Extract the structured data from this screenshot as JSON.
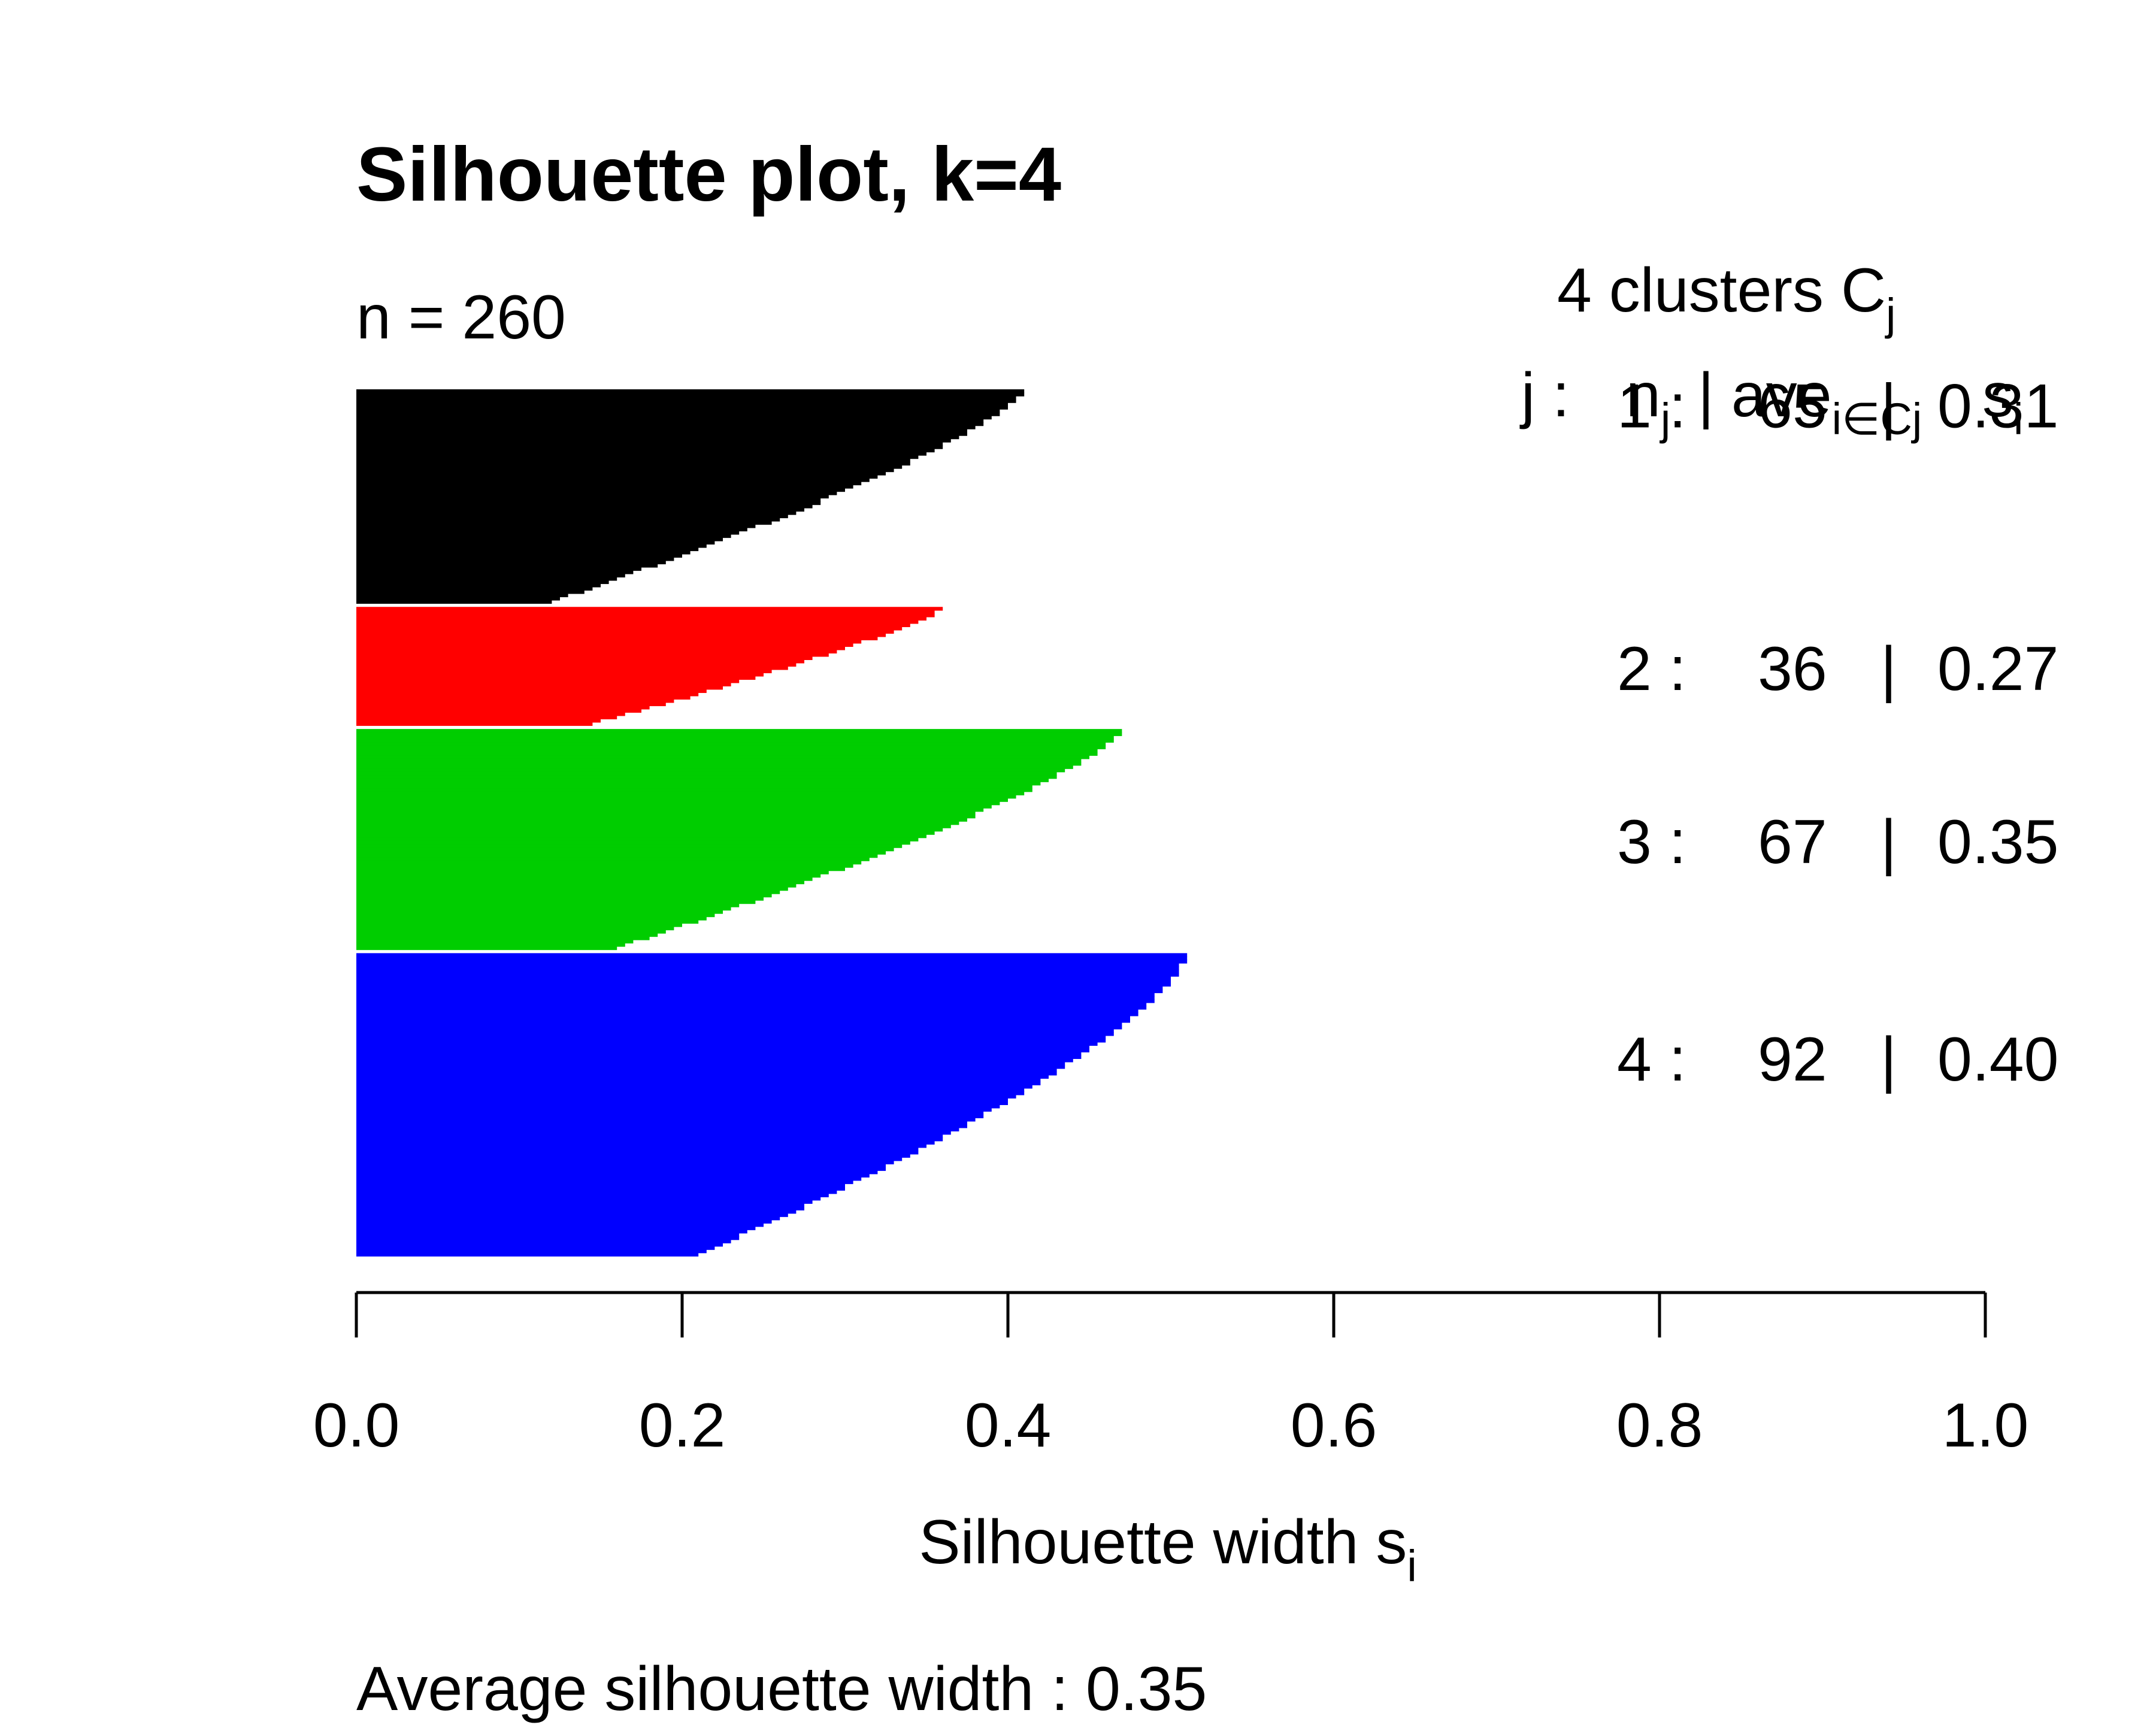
{
  "chart_data": {
    "type": "bar",
    "orientation": "horizontal",
    "title": "Silhouette plot, k=4",
    "subtitle": "n = 260",
    "xlabel": {
      "text": "Silhouette width s",
      "sub": "i"
    },
    "xlim": [
      0,
      1
    ],
    "xticks": [
      {
        "value": 0.0,
        "label": "0.0"
      },
      {
        "value": 0.2,
        "label": "0.2"
      },
      {
        "value": 0.4,
        "label": "0.4"
      },
      {
        "value": 0.6,
        "label": "0.6"
      },
      {
        "value": 0.8,
        "label": "0.8"
      },
      {
        "value": 1.0,
        "label": "1.0"
      }
    ],
    "grid": false,
    "legend_header": {
      "line1": {
        "text": "4  clusters  C",
        "sub": "j"
      },
      "line2": {
        "j": "j :",
        "n": "n",
        "n_sub": "j",
        "ave": "| ave",
        "ave_sub": "i∈Cj",
        "s": "s",
        "s_sub": "i"
      }
    },
    "clusters": [
      {
        "id": "1",
        "color": "#000000",
        "n": 65,
        "n_label": "65",
        "avg_label": "0.31",
        "max": 0.41,
        "min": 0.12,
        "shape": 1.3
      },
      {
        "id": "2",
        "color": "#ff0000",
        "n": 36,
        "n_label": "36",
        "avg_label": "0.27",
        "max": 0.36,
        "min": 0.145,
        "shape": 1.2
      },
      {
        "id": "3",
        "color": "#00cd00",
        "n": 67,
        "n_label": "67",
        "avg_label": "0.35",
        "max": 0.47,
        "min": 0.16,
        "shape": 1.3
      },
      {
        "id": "4",
        "color": "#0000ff",
        "n": 92,
        "n_label": "92",
        "avg_label": "0.40",
        "max": 0.51,
        "min": 0.21,
        "shape": 1.4
      }
    ],
    "footer": "Average silhouette width :  0.35"
  }
}
